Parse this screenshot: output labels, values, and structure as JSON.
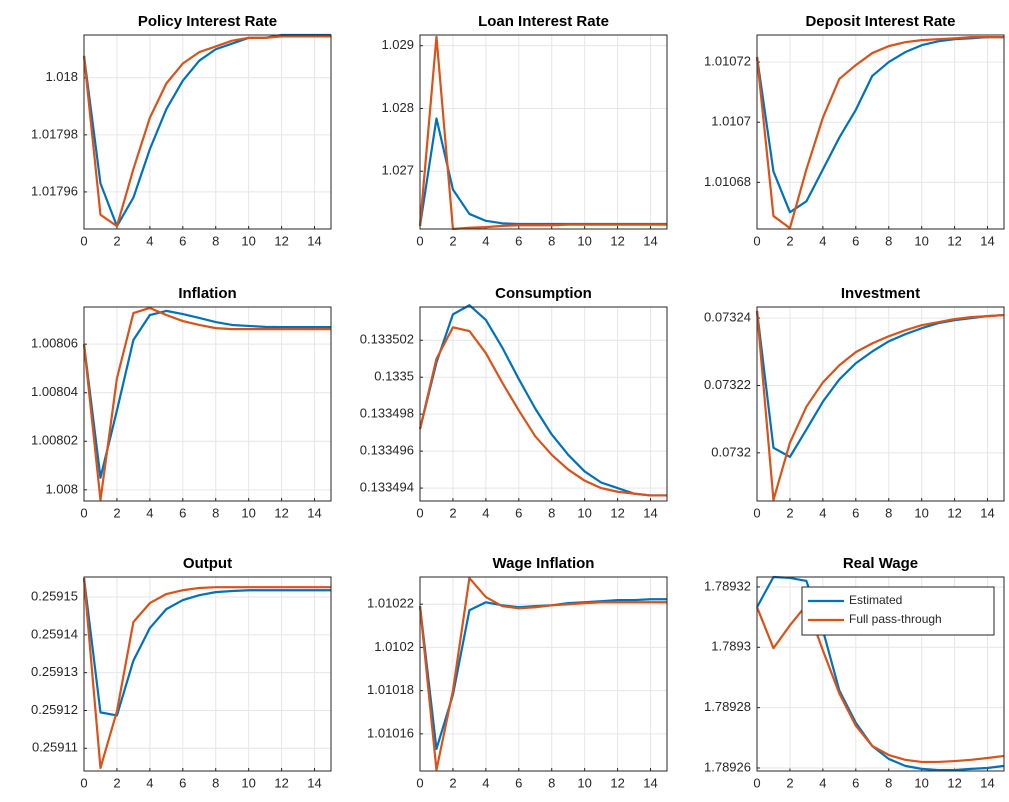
{
  "chart_data": [
    {
      "type": "line",
      "title": "Policy Interest Rate",
      "x": [
        0,
        1,
        2,
        3,
        4,
        5,
        6,
        7,
        8,
        9,
        10,
        11,
        12,
        13,
        14,
        15
      ],
      "xlim": [
        0,
        15
      ],
      "xticks": [
        0,
        2,
        4,
        6,
        8,
        10,
        12,
        14
      ],
      "ylim": [
        1.017947,
        1.018015
      ],
      "yticks": [
        1.01796,
        1.01798,
        1.018
      ],
      "grid": true,
      "series": [
        {
          "color": "#0072bd",
          "values": [
            1.0180077,
            1.017963,
            1.017948,
            1.017958,
            1.017975,
            1.017989,
            1.017999,
            1.018006,
            1.01801,
            1.018012,
            1.018014,
            1.018014,
            1.018015,
            1.018015,
            1.018015,
            1.018015
          ]
        },
        {
          "color": "#d95319",
          "values": [
            1.0180077,
            1.017952,
            1.017948,
            1.017968,
            1.017986,
            1.017998,
            1.018005,
            1.018009,
            1.018011,
            1.018013,
            1.018014,
            1.018014,
            1.0180145,
            1.0180145,
            1.0180145,
            1.0180145
          ]
        }
      ]
    },
    {
      "type": "line",
      "title": "Loan Interest Rate",
      "x": [
        0,
        1,
        2,
        3,
        4,
        5,
        6,
        7,
        8,
        9,
        10,
        11,
        12,
        13,
        14,
        15
      ],
      "xlim": [
        0,
        15
      ],
      "xticks": [
        0,
        2,
        4,
        6,
        8,
        10,
        12,
        14
      ],
      "ylim": [
        1.02608,
        1.02917
      ],
      "yticks": [
        1.027,
        1.028,
        1.029
      ],
      "grid": true,
      "series": [
        {
          "color": "#0072bd",
          "values": [
            1.02613,
            1.02784,
            1.02671,
            1.02632,
            1.02621,
            1.02617,
            1.02616,
            1.02616,
            1.02616,
            1.02616,
            1.02616,
            1.02616,
            1.02616,
            1.02616,
            1.02616,
            1.02616
          ]
        },
        {
          "color": "#d95319",
          "values": [
            1.02613,
            1.02914,
            1.02608,
            1.0261,
            1.02611,
            1.02613,
            1.02614,
            1.02614,
            1.02614,
            1.02615,
            1.02615,
            1.02615,
            1.02615,
            1.02615,
            1.02615,
            1.02615
          ]
        }
      ]
    },
    {
      "type": "line",
      "title": "Deposit Interest Rate",
      "x": [
        0,
        1,
        2,
        3,
        4,
        5,
        6,
        7,
        8,
        9,
        10,
        11,
        12,
        13,
        14,
        15
      ],
      "xlim": [
        0,
        15
      ],
      "xticks": [
        0,
        2,
        4,
        6,
        8,
        10,
        12,
        14
      ],
      "ylim": [
        1.0106645,
        1.010729
      ],
      "yticks": [
        1.01068,
        1.0107,
        1.01072
      ],
      "grid": true,
      "series": [
        {
          "color": "#0072bd",
          "values": [
            1.0107217,
            1.0106836,
            1.0106701,
            1.0106737,
            1.0106843,
            1.0106949,
            1.0107041,
            1.0107154,
            1.01072,
            1.0107233,
            1.0107256,
            1.0107269,
            1.0107276,
            1.0107279,
            1.0107283,
            1.0107283
          ]
        },
        {
          "color": "#d95319",
          "values": [
            1.0107217,
            1.0106688,
            1.0106648,
            1.0106843,
            1.0107015,
            1.0107144,
            1.010719,
            1.010723,
            1.0107253,
            1.0107266,
            1.0107273,
            1.0107276,
            1.0107279,
            1.0107283,
            1.0107283,
            1.0107283
          ]
        }
      ]
    },
    {
      "type": "line",
      "title": "Inflation",
      "x": [
        0,
        1,
        2,
        3,
        4,
        5,
        6,
        7,
        8,
        9,
        10,
        11,
        12,
        13,
        14,
        15
      ],
      "xlim": [
        0,
        15
      ],
      "xticks": [
        0,
        2,
        4,
        6,
        8,
        10,
        12,
        14
      ],
      "ylim": [
        1.0079954,
        1.0080753
      ],
      "yticks": [
        1.008,
        1.00802,
        1.00804,
        1.00806
      ],
      "grid": true,
      "series": [
        {
          "color": "#0072bd",
          "values": [
            1.00806,
            1.008005,
            1.0080327,
            1.0080617,
            1.008072,
            1.0080737,
            1.0080724,
            1.0080708,
            1.0080691,
            1.0080679,
            1.0080675,
            1.0080671,
            1.008067,
            1.008067,
            1.008067,
            1.008067
          ]
        },
        {
          "color": "#d95319",
          "values": [
            1.00806,
            1.0079958,
            1.0080459,
            1.0080728,
            1.0080749,
            1.008072,
            1.0080695,
            1.0080679,
            1.0080666,
            1.0080662,
            1.0080662,
            1.0080662,
            1.0080662,
            1.0080662,
            1.0080662,
            1.0080662
          ]
        }
      ]
    },
    {
      "type": "line",
      "title": "Consumption",
      "x": [
        0,
        1,
        2,
        3,
        4,
        5,
        6,
        7,
        8,
        9,
        10,
        11,
        12,
        13,
        14,
        15
      ],
      "xlim": [
        0,
        15
      ],
      "xticks": [
        0,
        2,
        4,
        6,
        8,
        10,
        12,
        14
      ],
      "ylim": [
        0.1334933,
        0.1335038
      ],
      "yticks": [
        0.133494,
        0.133496,
        0.133498,
        0.1335,
        0.133502
      ],
      "grid": true,
      "series": [
        {
          "color": "#0072bd",
          "values": [
            0.1334972,
            0.1335008,
            0.1335034,
            0.1335039,
            0.1335031,
            0.1335016,
            0.1334999,
            0.1334983,
            0.1334969,
            0.1334958,
            0.1334949,
            0.1334943,
            0.133494,
            0.1334937,
            0.1334936,
            0.1334936
          ]
        },
        {
          "color": "#d95319",
          "values": [
            0.1334972,
            0.133501,
            0.1335027,
            0.1335025,
            0.1335013,
            0.1334997,
            0.1334982,
            0.1334968,
            0.1334958,
            0.133495,
            0.1334944,
            0.133494,
            0.1334938,
            0.1334937,
            0.1334936,
            0.1334936
          ]
        }
      ]
    },
    {
      "type": "line",
      "title": "Investment",
      "x": [
        0,
        1,
        2,
        3,
        4,
        5,
        6,
        7,
        8,
        9,
        10,
        11,
        12,
        13,
        14,
        15
      ],
      "xlim": [
        0,
        15
      ],
      "xticks": [
        0,
        2,
        4,
        6,
        8,
        10,
        12,
        14
      ],
      "ylim": [
        0.0731857,
        0.0732433
      ],
      "yticks": [
        0.0732,
        0.07322,
        0.07324
      ],
      "grid": true,
      "series": [
        {
          "color": "#0072bd",
          "values": [
            0.0732421,
            0.0732015,
            0.0731988,
            0.0732069,
            0.0732152,
            0.0732218,
            0.0732266,
            0.0732301,
            0.0732331,
            0.0732352,
            0.073237,
            0.0732385,
            0.0732394,
            0.07324,
            0.0732406,
            0.0732409
          ]
        },
        {
          "color": "#d95319",
          "values": [
            0.0732421,
            0.073186,
            0.073203,
            0.0732137,
            0.0732209,
            0.073226,
            0.0732299,
            0.0732325,
            0.0732346,
            0.0732364,
            0.0732379,
            0.0732388,
            0.0732397,
            0.0732403,
            0.0732406,
            0.0732409
          ]
        }
      ]
    },
    {
      "type": "line",
      "title": "Output",
      "x": [
        0,
        1,
        2,
        3,
        4,
        5,
        6,
        7,
        8,
        9,
        10,
        11,
        12,
        13,
        14,
        15
      ],
      "xlim": [
        0,
        15
      ],
      "xticks": [
        0,
        2,
        4,
        6,
        8,
        10,
        12,
        14
      ],
      "ylim": [
        0.259104,
        0.2591553
      ],
      "yticks": [
        0.25911,
        0.25912,
        0.25913,
        0.25914,
        0.25915
      ],
      "grid": true,
      "series": [
        {
          "color": "#0072bd",
          "values": [
            0.259155,
            0.2591195,
            0.2591187,
            0.2591332,
            0.2591418,
            0.2591468,
            0.2591492,
            0.2591505,
            0.2591513,
            0.2591516,
            0.2591518,
            0.2591518,
            0.2591518,
            0.2591518,
            0.2591518,
            0.2591518
          ]
        },
        {
          "color": "#d95319",
          "values": [
            0.259155,
            0.2591048,
            0.2591198,
            0.2591434,
            0.2591484,
            0.2591508,
            0.2591518,
            0.2591524,
            0.2591526,
            0.2591526,
            0.2591526,
            0.2591526,
            0.2591526,
            0.2591526,
            0.2591526,
            0.2591526
          ]
        }
      ]
    },
    {
      "type": "line",
      "title": "Wage Inflation",
      "x": [
        0,
        1,
        2,
        3,
        4,
        5,
        6,
        7,
        8,
        9,
        10,
        11,
        12,
        13,
        14,
        15
      ],
      "xlim": [
        0,
        15
      ],
      "xticks": [
        0,
        2,
        4,
        6,
        8,
        10,
        12,
        14
      ],
      "ylim": [
        1.0101428,
        1.0102326
      ],
      "yticks": [
        1.01016,
        1.01018,
        1.0102,
        1.01022
      ],
      "grid": true,
      "series": [
        {
          "color": "#0072bd",
          "values": [
            1.0102191,
            1.010153,
            1.0101781,
            1.0102172,
            1.0102209,
            1.0102195,
            1.0102186,
            1.0102191,
            1.0102195,
            1.0102205,
            1.0102209,
            1.0102214,
            1.0102219,
            1.0102219,
            1.0102223,
            1.0102223
          ]
        },
        {
          "color": "#d95319",
          "values": [
            1.0102191,
            1.0101433,
            1.01018,
            1.0102321,
            1.0102233,
            1.0102191,
            1.0102181,
            1.0102186,
            1.0102195,
            1.01022,
            1.0102205,
            1.0102209,
            1.0102209,
            1.0102209,
            1.0102209,
            1.0102209
          ]
        }
      ]
    },
    {
      "type": "line",
      "title": "Real Wage",
      "x": [
        0,
        1,
        2,
        3,
        4,
        5,
        6,
        7,
        8,
        9,
        10,
        11,
        12,
        13,
        14,
        15
      ],
      "xlim": [
        0,
        15
      ],
      "xticks": [
        0,
        2,
        4,
        6,
        8,
        10,
        12,
        14
      ],
      "ylim": [
        1.789259,
        1.7893233
      ],
      "yticks": [
        1.78926,
        1.78928,
        1.7893,
        1.78932
      ],
      "grid": true,
      "legend": "northeast",
      "series": [
        {
          "name": "Estimated",
          "color": "#0072bd",
          "values": [
            1.7893133,
            1.7893233,
            1.789323,
            1.789322,
            1.7893057,
            1.7892857,
            1.789275,
            1.7892673,
            1.789263,
            1.7892607,
            1.7892597,
            1.7892593,
            1.7892593,
            1.7892597,
            1.78926,
            1.7892607
          ]
        },
        {
          "name": "Full pass-through",
          "color": "#d95319",
          "values": [
            1.7893133,
            1.7892997,
            1.7893073,
            1.789314,
            1.789299,
            1.7892847,
            1.789274,
            1.7892673,
            1.7892643,
            1.7892627,
            1.789262,
            1.789262,
            1.7892623,
            1.7892627,
            1.7892633,
            1.789264
          ]
        }
      ]
    }
  ]
}
